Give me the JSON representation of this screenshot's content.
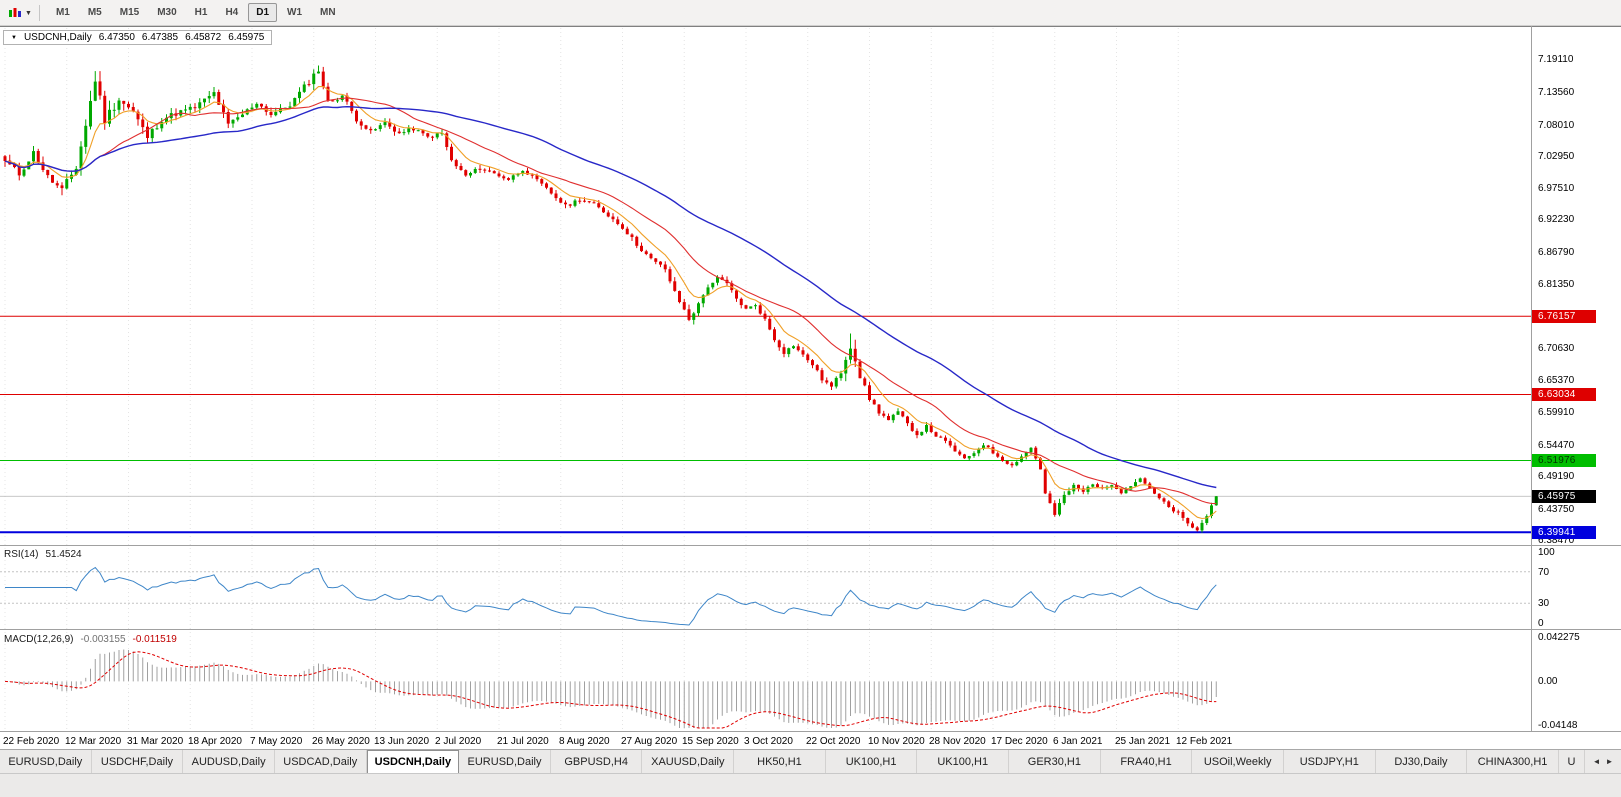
{
  "icons": {
    "chart_type_caret": "▼",
    "quote_caret": "▼",
    "tab_scroll_left": "◄",
    "tab_scroll_right": "►"
  },
  "toolbar": {
    "timeframes": [
      "M1",
      "M5",
      "M15",
      "M30",
      "H1",
      "H4",
      "D1",
      "W1",
      "MN"
    ],
    "active_timeframe": "D1"
  },
  "main_chart": {
    "title": "USDCNH,Daily",
    "quote_open": "6.47350",
    "quote_high": "6.47385",
    "quote_low": "6.45872",
    "quote_close": "6.45975"
  },
  "rsi_panel": {
    "name": "RSI(14)",
    "value": "51.4524",
    "axis_labels": [
      "100",
      "70",
      "30",
      "0"
    ]
  },
  "macd_panel": {
    "name": "MACD(12,26,9)",
    "value_main": "-0.003155",
    "value_signal": "-0.011519",
    "axis_labels": [
      "0.042275",
      "0.00",
      "-0.04148"
    ]
  },
  "tabs": {
    "items": [
      "EURUSD,Daily",
      "USDCHF,Daily",
      "AUDUSD,Daily",
      "USDCAD,Daily",
      "USDCNH,Daily",
      "EURUSD,Daily",
      "GBPUSD,H4",
      "XAUUSD,Daily",
      "HK50,H1",
      "UK100,H1",
      "UK100,H1",
      "GER30,H1",
      "FRA40,H1",
      "USOil,Weekly",
      "USDJPY,H1",
      "DJ30,Daily",
      "CHINA300,H1"
    ],
    "active_index": 4,
    "partial_item": "U"
  },
  "colors": {
    "candle_up": "#00A800",
    "candle_down": "#E00000",
    "ma_fast": "#F0A028",
    "ma_mid": "#E03030",
    "ma_slow": "#2828C8",
    "rsi_line": "#3E86C8",
    "macd_hist": "#A0A0A0",
    "macd_signal": "#E00000",
    "grid": "#E4E4E4",
    "separator": "#A0A0A0",
    "current_price_line": "#B4B4B4"
  },
  "chart_data": {
    "type": "candlestick",
    "symbol": "USDCNH",
    "period": "Daily",
    "candles": 256,
    "candles_per_date_tick": 13,
    "price_axis": {
      "min": 6.378,
      "max": 7.245,
      "labels": [
        "7.19110",
        "7.13560",
        "7.08010",
        "7.02950",
        "6.97510",
        "6.92230",
        "6.86790",
        "6.81350",
        "6.70630",
        "6.65370",
        "6.59910",
        "6.54470",
        "6.49190",
        "6.43750",
        "6.38470"
      ]
    },
    "date_labels": [
      "22 Feb 2020",
      "12 Mar 2020",
      "31 Mar 2020",
      "18 Apr 2020",
      "7 May 2020",
      "26 May 2020",
      "13 Jun 2020",
      "2 Jul 2020",
      "21 Jul 2020",
      "8 Aug 2020",
      "27 Aug 2020",
      "15 Sep 2020",
      "3 Oct 2020",
      "22 Oct 2020",
      "10 Nov 2020",
      "28 Nov 2020",
      "17 Dec 2020",
      "6 Jan 2021",
      "25 Jan 2021",
      "12 Feb 2021"
    ],
    "hlines": [
      {
        "value": 6.76157,
        "label": "6.76157",
        "color": "#DE0000",
        "text_color": "#FFFFFF",
        "width": 1
      },
      {
        "value": 6.63034,
        "label": "6.63034",
        "color": "#DE0000",
        "text_color": "#FFFFFF",
        "width": 1
      },
      {
        "value": 6.51976,
        "label": "6.51976",
        "color": "#00BE00",
        "text_color": "#003300",
        "width": 1
      },
      {
        "value": 6.39941,
        "label": "6.39941",
        "color": "#0000DE",
        "text_color": "#FFFFFF",
        "width": 2
      }
    ],
    "current_price": {
      "value": 6.45975,
      "label": "6.45975",
      "box_color": "#000000",
      "text_color": "#FFFFFF"
    },
    "close_anchors": [
      [
        0,
        7.022,
        0.02
      ],
      [
        3,
        7.0,
        0.022
      ],
      [
        6,
        7.036,
        0.02
      ],
      [
        9,
        6.995,
        0.022
      ],
      [
        12,
        6.972,
        0.026
      ],
      [
        15,
        7.012,
        0.032
      ],
      [
        17,
        7.082,
        0.036
      ],
      [
        19,
        7.16,
        0.04
      ],
      [
        21,
        7.092,
        0.034
      ],
      [
        24,
        7.126,
        0.028
      ],
      [
        27,
        7.104,
        0.024
      ],
      [
        30,
        7.062,
        0.024
      ],
      [
        33,
        7.092,
        0.022
      ],
      [
        36,
        7.102,
        0.019
      ],
      [
        40,
        7.112,
        0.018
      ],
      [
        44,
        7.136,
        0.018
      ],
      [
        47,
        7.082,
        0.02
      ],
      [
        50,
        7.1,
        0.017
      ],
      [
        53,
        7.12,
        0.016
      ],
      [
        56,
        7.1,
        0.016
      ],
      [
        60,
        7.116,
        0.016
      ],
      [
        63,
        7.146,
        0.02
      ],
      [
        66,
        7.176,
        0.026
      ],
      [
        68,
        7.12,
        0.022
      ],
      [
        71,
        7.132,
        0.018
      ],
      [
        74,
        7.092,
        0.016
      ],
      [
        77,
        7.07,
        0.015
      ],
      [
        80,
        7.086,
        0.014
      ],
      [
        83,
        7.068,
        0.014
      ],
      [
        86,
        7.076,
        0.013
      ],
      [
        89,
        7.062,
        0.013
      ],
      [
        92,
        7.068,
        0.013
      ],
      [
        94,
        7.022,
        0.016
      ],
      [
        97,
        6.997,
        0.014
      ],
      [
        100,
        7.01,
        0.013
      ],
      [
        103,
        7.001,
        0.012
      ],
      [
        106,
        6.991,
        0.012
      ],
      [
        109,
        7.008,
        0.012
      ],
      [
        112,
        6.989,
        0.012
      ],
      [
        115,
        6.968,
        0.012
      ],
      [
        118,
        6.946,
        0.014
      ],
      [
        121,
        6.958,
        0.012
      ],
      [
        124,
        6.949,
        0.012
      ],
      [
        127,
        6.931,
        0.012
      ],
      [
        130,
        6.911,
        0.013
      ],
      [
        133,
        6.882,
        0.014
      ],
      [
        136,
        6.857,
        0.013
      ],
      [
        139,
        6.841,
        0.013
      ],
      [
        141,
        6.801,
        0.016
      ],
      [
        144,
        6.757,
        0.018
      ],
      [
        146,
        6.781,
        0.014
      ],
      [
        148,
        6.812,
        0.013
      ],
      [
        150,
        6.825,
        0.012
      ],
      [
        152,
        6.816,
        0.012
      ],
      [
        154,
        6.791,
        0.012
      ],
      [
        156,
        6.773,
        0.012
      ],
      [
        158,
        6.781,
        0.011
      ],
      [
        160,
        6.756,
        0.012
      ],
      [
        162,
        6.723,
        0.013
      ],
      [
        164,
        6.701,
        0.012
      ],
      [
        166,
        6.713,
        0.011
      ],
      [
        168,
        6.696,
        0.011
      ],
      [
        170,
        6.681,
        0.012
      ],
      [
        172,
        6.656,
        0.012
      ],
      [
        174,
        6.643,
        0.012
      ],
      [
        176,
        6.668,
        0.014
      ],
      [
        178,
        6.72,
        0.055
      ],
      [
        180,
        6.661,
        0.016
      ],
      [
        182,
        6.623,
        0.014
      ],
      [
        184,
        6.601,
        0.013
      ],
      [
        186,
        6.587,
        0.012
      ],
      [
        188,
        6.601,
        0.011
      ],
      [
        190,
        6.581,
        0.011
      ],
      [
        192,
        6.563,
        0.011
      ],
      [
        194,
        6.577,
        0.01
      ],
      [
        196,
        6.561,
        0.01
      ],
      [
        198,
        6.551,
        0.01
      ],
      [
        200,
        6.536,
        0.011
      ],
      [
        202,
        6.521,
        0.011
      ],
      [
        204,
        6.533,
        0.01
      ],
      [
        206,
        6.547,
        0.01
      ],
      [
        208,
        6.533,
        0.01
      ],
      [
        210,
        6.521,
        0.01
      ],
      [
        212,
        6.511,
        0.01
      ],
      [
        214,
        6.527,
        0.01
      ],
      [
        216,
        6.541,
        0.01
      ],
      [
        218,
        6.506,
        0.012
      ],
      [
        219,
        6.463,
        0.022
      ],
      [
        221,
        6.429,
        0.018
      ],
      [
        223,
        6.461,
        0.014
      ],
      [
        225,
        6.477,
        0.012
      ],
      [
        227,
        6.467,
        0.011
      ],
      [
        229,
        6.482,
        0.011
      ],
      [
        231,
        6.471,
        0.01
      ],
      [
        233,
        6.481,
        0.01
      ],
      [
        235,
        6.467,
        0.01
      ],
      [
        237,
        6.477,
        0.01
      ],
      [
        239,
        6.491,
        0.011
      ],
      [
        241,
        6.471,
        0.01
      ],
      [
        243,
        6.456,
        0.01
      ],
      [
        245,
        6.441,
        0.011
      ],
      [
        247,
        6.431,
        0.011
      ],
      [
        249,
        6.413,
        0.011
      ],
      [
        251,
        6.403,
        0.012
      ],
      [
        253,
        6.426,
        0.011
      ],
      [
        254,
        6.447,
        0.011
      ],
      [
        255,
        6.4597,
        0.01
      ]
    ],
    "overlays": {
      "ema_fast_period": 8,
      "sma_mid_period": 20,
      "sma_slow_period": 50
    },
    "indicators": {
      "rsi": {
        "period": 14,
        "levels": [
          70,
          30
        ]
      },
      "macd": {
        "fast": 12,
        "slow": 26,
        "signal": 9,
        "scale_max": 0.042275,
        "scale_min": -0.04148
      }
    }
  }
}
